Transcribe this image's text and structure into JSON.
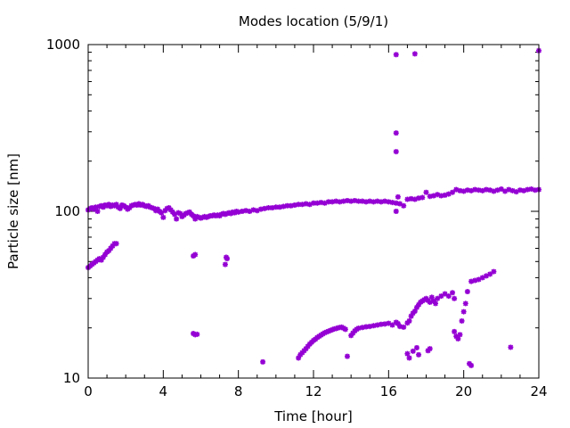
{
  "chart_data": {
    "type": "scatter",
    "title": "Modes location (5/9/1)",
    "xlabel": "Time [hour]",
    "ylabel": "Particle size [nm]",
    "xlim": [
      0,
      24
    ],
    "ylim": [
      10,
      1000
    ],
    "yscale": "log",
    "grid": false,
    "legend": "none",
    "x_ticks": [
      "0",
      "4",
      "8",
      "12",
      "16",
      "20",
      "24"
    ],
    "y_ticks": [
      "10",
      "100",
      "1000"
    ],
    "marker_color": "#9400d3",
    "series": [
      {
        "points": [
          [
            0.0,
            102
          ],
          [
            0.1,
            104
          ],
          [
            0.2,
            105
          ],
          [
            0.3,
            103
          ],
          [
            0.4,
            106
          ],
          [
            0.5,
            100
          ],
          [
            0.6,
            107
          ],
          [
            0.7,
            108
          ],
          [
            0.8,
            106
          ],
          [
            0.9,
            109
          ],
          [
            1.0,
            108
          ],
          [
            1.1,
            110
          ],
          [
            1.2,
            107
          ],
          [
            1.3,
            109
          ],
          [
            1.4,
            108
          ],
          [
            1.5,
            110
          ],
          [
            1.6,
            106
          ],
          [
            1.7,
            104
          ],
          [
            1.8,
            109
          ],
          [
            1.9,
            108
          ],
          [
            2.0,
            106
          ],
          [
            2.1,
            103
          ],
          [
            2.2,
            105
          ],
          [
            2.3,
            108
          ],
          [
            2.4,
            109
          ],
          [
            2.5,
            110
          ],
          [
            2.6,
            109
          ],
          [
            2.7,
            111
          ],
          [
            2.8,
            109
          ],
          [
            2.9,
            110
          ],
          [
            3.0,
            108
          ],
          [
            3.1,
            107
          ],
          [
            3.2,
            108
          ],
          [
            3.3,
            106
          ],
          [
            3.4,
            105
          ],
          [
            3.5,
            104
          ],
          [
            3.6,
            101
          ],
          [
            3.7,
            103
          ],
          [
            3.8,
            100
          ],
          [
            3.9,
            98
          ],
          [
            4.0,
            92
          ],
          [
            4.1,
            101
          ],
          [
            4.2,
            104
          ],
          [
            4.3,
            105
          ],
          [
            4.4,
            102
          ],
          [
            4.5,
            99
          ],
          [
            4.6,
            96
          ],
          [
            4.7,
            90
          ],
          [
            4.8,
            98
          ],
          [
            4.9,
            97
          ],
          [
            5.0,
            93
          ],
          [
            5.1,
            95
          ],
          [
            5.2,
            97
          ],
          [
            5.3,
            98
          ],
          [
            5.4,
            99
          ],
          [
            5.5,
            96
          ],
          [
            5.6,
            94
          ],
          [
            5.7,
            90
          ],
          [
            5.8,
            93
          ],
          [
            5.9,
            92
          ],
          [
            6.0,
            91
          ],
          [
            6.1,
            92
          ],
          [
            6.2,
            93
          ],
          [
            6.3,
            92
          ],
          [
            6.4,
            93
          ],
          [
            6.5,
            94
          ],
          [
            6.6,
            94
          ],
          [
            6.7,
            95
          ],
          [
            6.8,
            94
          ],
          [
            6.9,
            95
          ],
          [
            7.0,
            94
          ],
          [
            7.1,
            96
          ],
          [
            7.2,
            97
          ],
          [
            7.3,
            96
          ],
          [
            7.4,
            97
          ],
          [
            7.5,
            98
          ],
          [
            7.6,
            97
          ],
          [
            7.7,
            99
          ],
          [
            7.8,
            98
          ],
          [
            7.9,
            100
          ],
          [
            8.0,
            99
          ],
          [
            8.2,
            100
          ],
          [
            8.4,
            101
          ],
          [
            8.6,
            100
          ],
          [
            8.8,
            102
          ],
          [
            9.0,
            101
          ],
          [
            9.2,
            103
          ],
          [
            9.4,
            104
          ],
          [
            9.6,
            105
          ],
          [
            9.8,
            105
          ],
          [
            10.0,
            106
          ],
          [
            10.2,
            106
          ],
          [
            10.4,
            107
          ],
          [
            10.6,
            108
          ],
          [
            10.8,
            108
          ],
          [
            11.0,
            109
          ],
          [
            11.2,
            110
          ],
          [
            11.4,
            110
          ],
          [
            11.6,
            111
          ],
          [
            11.8,
            110
          ],
          [
            12.0,
            112
          ],
          [
            12.2,
            112
          ],
          [
            12.4,
            113
          ],
          [
            12.6,
            112
          ],
          [
            12.8,
            114
          ],
          [
            13.0,
            114
          ],
          [
            13.2,
            115
          ],
          [
            13.4,
            114
          ],
          [
            13.6,
            115
          ],
          [
            13.8,
            116
          ],
          [
            14.0,
            115
          ],
          [
            14.2,
            116
          ],
          [
            14.4,
            115
          ],
          [
            14.6,
            115
          ],
          [
            14.8,
            114
          ],
          [
            15.0,
            115
          ],
          [
            15.2,
            114
          ],
          [
            15.4,
            115
          ],
          [
            15.6,
            114
          ],
          [
            15.8,
            115
          ],
          [
            16.0,
            114
          ],
          [
            16.2,
            113
          ],
          [
            16.4,
            112
          ],
          [
            16.6,
            111
          ],
          [
            16.8,
            108
          ],
          [
            17.0,
            118
          ],
          [
            17.2,
            119
          ],
          [
            17.4,
            118
          ],
          [
            17.6,
            120
          ],
          [
            17.8,
            121
          ],
          [
            18.0,
            130
          ],
          [
            18.2,
            123
          ],
          [
            18.4,
            124
          ],
          [
            18.6,
            126
          ],
          [
            18.8,
            124
          ],
          [
            19.0,
            125
          ],
          [
            19.2,
            127
          ],
          [
            19.4,
            130
          ],
          [
            19.6,
            135
          ],
          [
            19.8,
            133
          ],
          [
            20.0,
            132
          ],
          [
            20.2,
            134
          ],
          [
            20.4,
            133
          ],
          [
            20.6,
            135
          ],
          [
            20.8,
            134
          ],
          [
            21.0,
            133
          ],
          [
            21.2,
            135
          ],
          [
            21.4,
            134
          ],
          [
            21.6,
            132
          ],
          [
            21.8,
            134
          ],
          [
            22.0,
            136
          ],
          [
            22.2,
            132
          ],
          [
            22.4,
            135
          ],
          [
            22.6,
            133
          ],
          [
            22.8,
            131
          ],
          [
            23.0,
            134
          ],
          [
            23.2,
            133
          ],
          [
            23.4,
            135
          ],
          [
            23.6,
            136
          ],
          [
            23.8,
            134
          ],
          [
            24.0,
            135
          ],
          [
            0.0,
            46
          ],
          [
            0.1,
            47
          ],
          [
            0.2,
            48
          ],
          [
            0.3,
            49
          ],
          [
            0.4,
            50
          ],
          [
            0.5,
            51
          ],
          [
            0.6,
            52
          ],
          [
            0.7,
            51
          ],
          [
            0.8,
            53
          ],
          [
            0.9,
            55
          ],
          [
            1.0,
            57
          ],
          [
            1.1,
            58
          ],
          [
            1.2,
            60
          ],
          [
            1.3,
            62
          ],
          [
            1.4,
            64
          ],
          [
            1.5,
            64
          ],
          [
            5.6,
            54
          ],
          [
            5.7,
            55
          ],
          [
            5.6,
            18.5
          ],
          [
            5.7,
            18.2
          ],
          [
            5.8,
            18.3
          ],
          [
            7.3,
            48
          ],
          [
            7.35,
            53
          ],
          [
            7.4,
            52
          ],
          [
            9.3,
            12.5
          ],
          [
            11.2,
            13.2
          ],
          [
            11.3,
            13.8
          ],
          [
            11.4,
            14.2
          ],
          [
            11.5,
            14.6
          ],
          [
            11.6,
            15.0
          ],
          [
            11.7,
            15.5
          ],
          [
            11.8,
            16.0
          ],
          [
            11.9,
            16.4
          ],
          [
            12.0,
            16.8
          ],
          [
            12.1,
            17.1
          ],
          [
            12.2,
            17.5
          ],
          [
            12.3,
            17.8
          ],
          [
            12.4,
            18.1
          ],
          [
            12.5,
            18.4
          ],
          [
            12.6,
            18.7
          ],
          [
            12.7,
            18.9
          ],
          [
            12.8,
            19.1
          ],
          [
            12.9,
            19.3
          ],
          [
            13.0,
            19.5
          ],
          [
            13.1,
            19.7
          ],
          [
            13.2,
            19.8
          ],
          [
            13.3,
            20.0
          ],
          [
            13.4,
            20.1
          ],
          [
            13.5,
            20.2
          ],
          [
            13.6,
            19.9
          ],
          [
            13.7,
            19.6
          ],
          [
            13.8,
            13.5
          ],
          [
            14.0,
            18.0
          ],
          [
            14.1,
            18.6
          ],
          [
            14.2,
            19.2
          ],
          [
            14.3,
            19.6
          ],
          [
            14.4,
            19.9
          ],
          [
            14.6,
            20.1
          ],
          [
            14.8,
            20.3
          ],
          [
            15.0,
            20.4
          ],
          [
            15.2,
            20.6
          ],
          [
            15.4,
            20.8
          ],
          [
            15.6,
            21.0
          ],
          [
            15.8,
            21.1
          ],
          [
            16.0,
            21.3
          ],
          [
            16.2,
            20.8
          ],
          [
            16.4,
            21.6
          ],
          [
            16.5,
            21.2
          ],
          [
            16.6,
            20.4
          ],
          [
            16.8,
            20.2
          ],
          [
            17.0,
            21.4
          ],
          [
            17.1,
            22.0
          ],
          [
            17.2,
            23.5
          ],
          [
            17.3,
            24.5
          ],
          [
            17.4,
            25.2
          ],
          [
            17.5,
            26.5
          ],
          [
            17.6,
            27.5
          ],
          [
            17.7,
            28.5
          ],
          [
            17.8,
            29.0
          ],
          [
            17.9,
            29.5
          ],
          [
            18.0,
            30.0
          ],
          [
            18.1,
            29.2
          ],
          [
            18.2,
            28.5
          ],
          [
            18.3,
            30.5
          ],
          [
            18.4,
            29.0
          ],
          [
            18.5,
            28.0
          ],
          [
            18.6,
            30.0
          ],
          [
            18.8,
            31.0
          ],
          [
            19.0,
            32.0
          ],
          [
            19.2,
            31.0
          ],
          [
            19.4,
            32.5
          ],
          [
            19.5,
            30.0
          ],
          [
            19.5,
            19.0
          ],
          [
            19.6,
            17.8
          ],
          [
            19.7,
            17.2
          ],
          [
            19.8,
            18.2
          ],
          [
            19.9,
            22.0
          ],
          [
            20.0,
            25.0
          ],
          [
            20.1,
            28.0
          ],
          [
            20.2,
            33.0
          ],
          [
            20.4,
            38.0
          ],
          [
            20.6,
            38.5
          ],
          [
            20.8,
            39.0
          ],
          [
            21.0,
            40.0
          ],
          [
            21.2,
            41.0
          ],
          [
            21.4,
            42.0
          ],
          [
            21.6,
            43.5
          ],
          [
            17.0,
            14.0
          ],
          [
            17.1,
            13.2
          ],
          [
            17.3,
            14.5
          ],
          [
            17.5,
            15.2
          ],
          [
            17.6,
            13.8
          ],
          [
            18.1,
            14.6
          ],
          [
            18.2,
            15.0
          ],
          [
            20.3,
            12.2
          ],
          [
            20.4,
            11.9
          ],
          [
            22.5,
            15.3
          ],
          [
            16.4,
            870
          ],
          [
            16.4,
            295
          ],
          [
            16.4,
            228
          ],
          [
            16.4,
            100
          ],
          [
            17.4,
            880
          ],
          [
            24.0,
            920
          ],
          [
            16.5,
            122
          ]
        ]
      }
    ]
  }
}
